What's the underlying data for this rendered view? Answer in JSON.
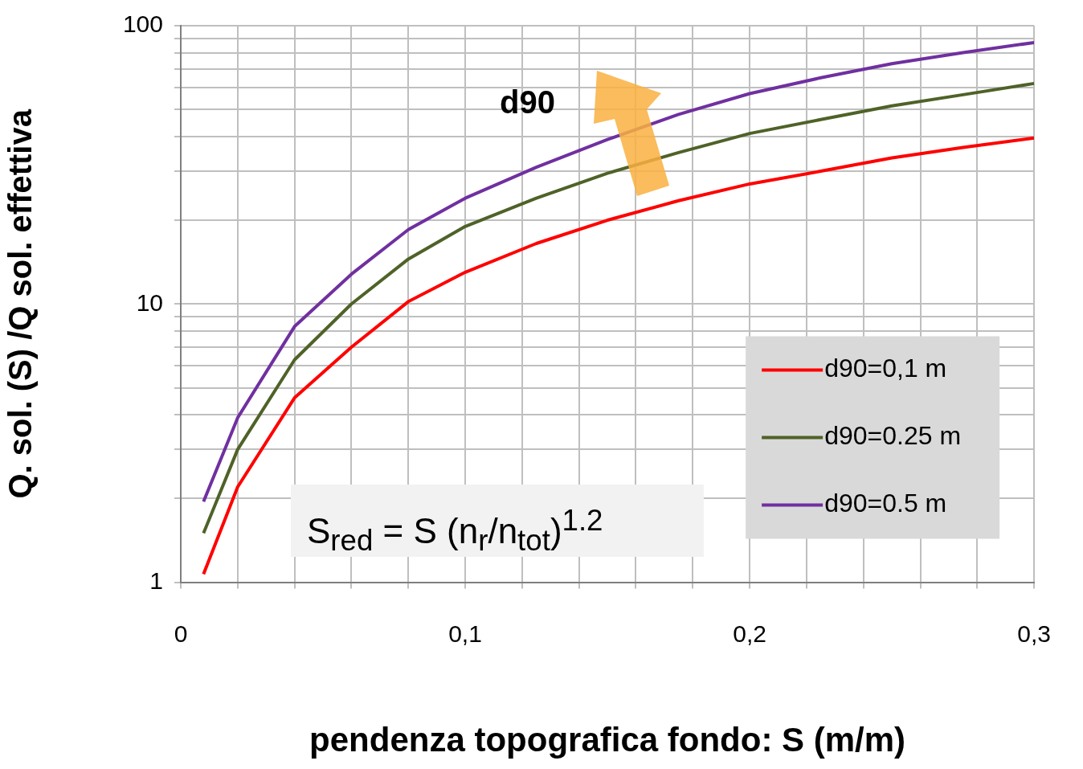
{
  "chart_data": {
    "type": "line",
    "xlabel": "pendenza topografica fondo: S (m/m)",
    "ylabel": "Q. sol. (S) /Q sol. effettiva",
    "x": [
      0.008,
      0.02,
      0.04,
      0.06,
      0.08,
      0.1,
      0.125,
      0.15,
      0.175,
      0.2,
      0.225,
      0.25,
      0.275,
      0.3
    ],
    "series": [
      {
        "name": "d90=0,1 m",
        "color": "#ff0000",
        "values": [
          1.07,
          2.2,
          4.6,
          7.0,
          10.2,
          13,
          16.5,
          20,
          23.5,
          27,
          30,
          33.5,
          36.5,
          39.5
        ]
      },
      {
        "name": "d90=0.25 m",
        "color": "#4f6228",
        "values": [
          1.5,
          3.0,
          6.3,
          10,
          14.5,
          19,
          24,
          29.5,
          35,
          41,
          46,
          51.5,
          56.5,
          62
        ]
      },
      {
        "name": "d90=0.5 m",
        "color": "#7030a0",
        "values": [
          1.95,
          3.9,
          8.3,
          12.8,
          18.5,
          24,
          31,
          39,
          48,
          57,
          65,
          73,
          80,
          87
        ]
      }
    ],
    "xlim": [
      0,
      0.3
    ],
    "xticks": [
      0,
      {
        "value": 0.02,
        "label": null
      },
      {
        "value": 0.04,
        "label": null
      },
      {
        "value": 0.06,
        "label": null
      },
      {
        "value": 0.08,
        "label": null
      },
      {
        "value": 0.1,
        "label": "0,1"
      },
      {
        "value": 0.12,
        "label": null
      },
      {
        "value": 0.14,
        "label": null
      },
      {
        "value": 0.16,
        "label": null
      },
      {
        "value": 0.18,
        "label": null
      },
      {
        "value": 0.2,
        "label": "0,2"
      },
      {
        "value": 0.22,
        "label": null
      },
      {
        "value": 0.24,
        "label": null
      },
      {
        "value": 0.26,
        "label": null
      },
      {
        "value": 0.28,
        "label": null
      },
      {
        "value": 0.3,
        "label": "0,3"
      }
    ],
    "ylim": [
      1,
      100
    ],
    "yticks": [
      1,
      {
        "value": 2,
        "label": null
      },
      {
        "value": 3,
        "label": null
      },
      {
        "value": 4,
        "label": null
      },
      {
        "value": 5,
        "label": null
      },
      {
        "value": 6,
        "label": null
      },
      {
        "value": 7,
        "label": null
      },
      {
        "value": 8,
        "label": null
      },
      {
        "value": 9,
        "label": null
      },
      10,
      {
        "value": 20,
        "label": null
      },
      {
        "value": 30,
        "label": null
      },
      {
        "value": 40,
        "label": null
      },
      {
        "value": 50,
        "label": null
      },
      {
        "value": 60,
        "label": null
      },
      {
        "value": 70,
        "label": null
      },
      {
        "value": 80,
        "label": null
      },
      {
        "value": 90,
        "label": null
      },
      100
    ],
    "log": "y",
    "grid": true,
    "legend": "bottom right",
    "marker": "none",
    "line_style": "solid",
    "annotations": [
      "d90",
      "S$_{red}$ = S (n$_{r}$/n$_{tot}$)$^{1.2}$"
    ]
  }
}
